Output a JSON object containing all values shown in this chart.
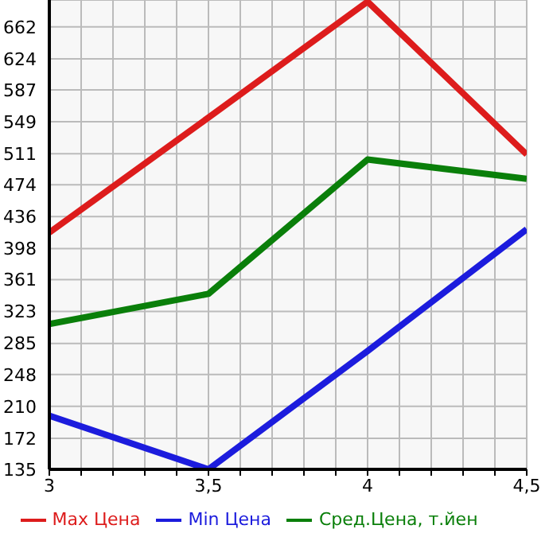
{
  "chart_data": {
    "type": "line",
    "x": [
      3,
      3.5,
      4,
      4.5
    ],
    "series": [
      {
        "name": "Max Цена",
        "color": "#dd1c1c",
        "values": [
          417,
          554,
          692,
          510
        ]
      },
      {
        "name": "Min Цена",
        "color": "#1c1cdd",
        "values": [
          199,
          135,
          276,
          421
        ]
      },
      {
        "name": "Сред.Цена, т.йен",
        "color": "#0a7f0a",
        "values": [
          308,
          344,
          504,
          481
        ]
      }
    ],
    "xlim": [
      3,
      4.5
    ],
    "xticks": [
      3,
      {
        "value": 3.1,
        "label": null
      },
      {
        "value": 3.2,
        "label": null
      },
      {
        "value": 3.3,
        "label": null
      },
      {
        "value": 3.4,
        "label": null
      },
      {
        "value": 3.5,
        "label": "3,5"
      },
      {
        "value": 3.6,
        "label": null
      },
      {
        "value": 3.7,
        "label": null
      },
      {
        "value": 3.8,
        "label": null
      },
      {
        "value": 3.9,
        "label": null
      },
      4,
      {
        "value": 4.1,
        "label": null
      },
      {
        "value": 4.2,
        "label": null
      },
      {
        "value": 4.3,
        "label": null
      },
      {
        "value": 4.4,
        "label": null
      },
      {
        "value": 4.5,
        "label": "4,5"
      }
    ],
    "ylim": [
      135,
      694
    ],
    "yticks": [
      135,
      172,
      210,
      248,
      285,
      323,
      361,
      398,
      436,
      474,
      511,
      549,
      587,
      624,
      662
    ],
    "grid": true,
    "legend": "bottom",
    "marker": "none",
    "line_style": "solid"
  }
}
